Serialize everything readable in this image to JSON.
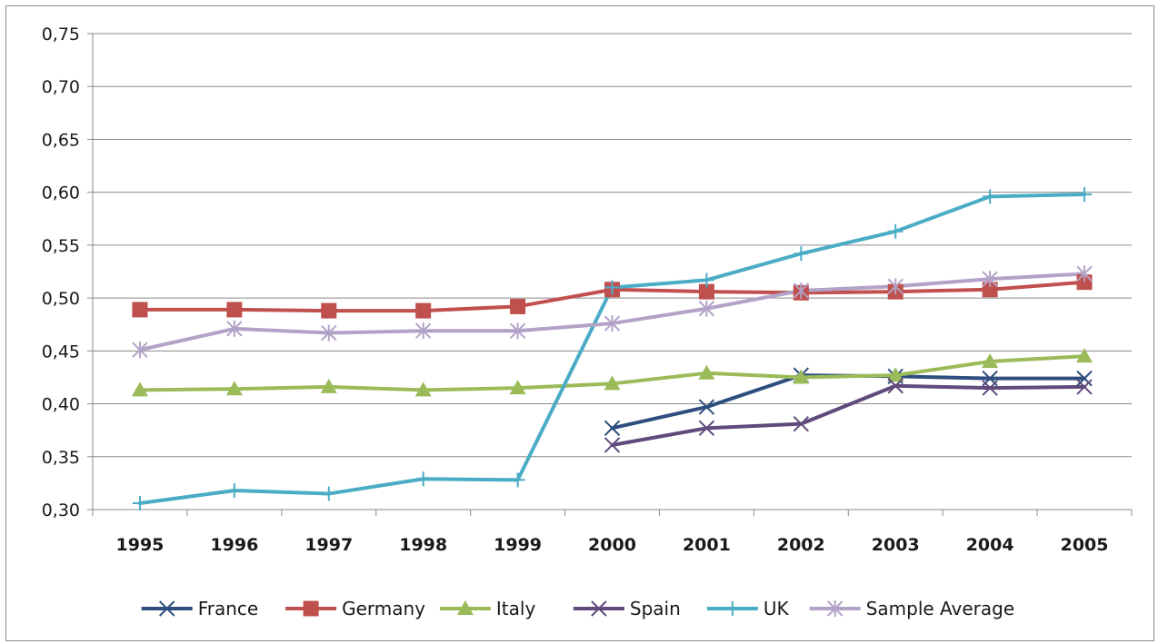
{
  "chart_data": {
    "type": "line",
    "title": "",
    "xlabel": "",
    "ylabel": "",
    "x": [
      "1995",
      "1996",
      "1997",
      "1998",
      "1999",
      "2000",
      "2001",
      "2002",
      "2003",
      "2004",
      "2005"
    ],
    "ylim": [
      0.3,
      0.75
    ],
    "yticks": [
      "0,30",
      "0,35",
      "0,40",
      "0,45",
      "0,50",
      "0,55",
      "0,60",
      "0,65",
      "0,70",
      "0,75"
    ],
    "grid": true,
    "legend_position": "bottom",
    "series": [
      {
        "name": "France",
        "color": "#2e4e7e",
        "marker": "x",
        "values": [
          null,
          null,
          null,
          null,
          null,
          0.377,
          0.397,
          0.427,
          0.426,
          0.424,
          0.424
        ]
      },
      {
        "name": "Germany",
        "color": "#c0504d",
        "marker": "square",
        "values": [
          0.489,
          0.489,
          0.488,
          0.488,
          0.492,
          0.508,
          0.506,
          0.505,
          0.506,
          0.508,
          0.515
        ]
      },
      {
        "name": "Italy",
        "color": "#9bbb59",
        "marker": "triangle",
        "values": [
          0.413,
          0.414,
          0.416,
          0.413,
          0.415,
          0.419,
          0.429,
          0.425,
          0.427,
          0.44,
          0.445
        ]
      },
      {
        "name": "Spain",
        "color": "#604a7b",
        "marker": "x",
        "values": [
          null,
          null,
          null,
          null,
          null,
          0.361,
          0.377,
          0.381,
          0.417,
          0.415,
          0.416
        ]
      },
      {
        "name": "UK",
        "color": "#4bacc6",
        "marker": "plus",
        "values": [
          0.306,
          0.318,
          0.315,
          0.329,
          0.328,
          0.51,
          0.517,
          0.542,
          0.563,
          0.596,
          0.598
        ]
      },
      {
        "name": "Sample Average",
        "color": "#b3a2c7",
        "marker": "star",
        "values": [
          0.451,
          0.471,
          0.467,
          0.469,
          0.469,
          0.476,
          0.49,
          0.507,
          0.511,
          0.518,
          0.523
        ]
      }
    ]
  }
}
